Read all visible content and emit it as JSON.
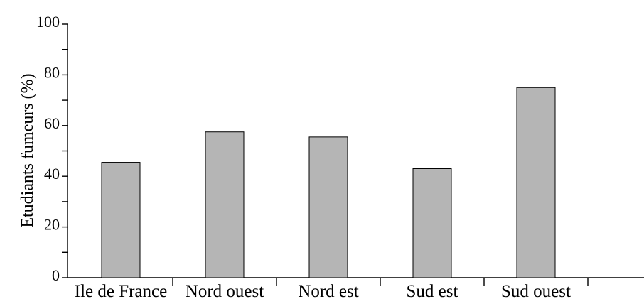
{
  "chart_data": {
    "type": "bar",
    "categories": [
      "Ile de France",
      "Nord ouest",
      "Nord est",
      "Sud est",
      "Sud ouest"
    ],
    "values": [
      45.5,
      57.5,
      55.5,
      43,
      75
    ],
    "title": "",
    "xlabel": "",
    "ylabel": "Etudiants fumeurs (%)",
    "ylim": [
      0,
      100
    ],
    "yticks": [
      0,
      20,
      40,
      60,
      80,
      100
    ],
    "grid": false,
    "colors": {
      "bar_fill": "#b5b5b5",
      "bar_stroke": "#000000",
      "axis": "#000000"
    }
  }
}
